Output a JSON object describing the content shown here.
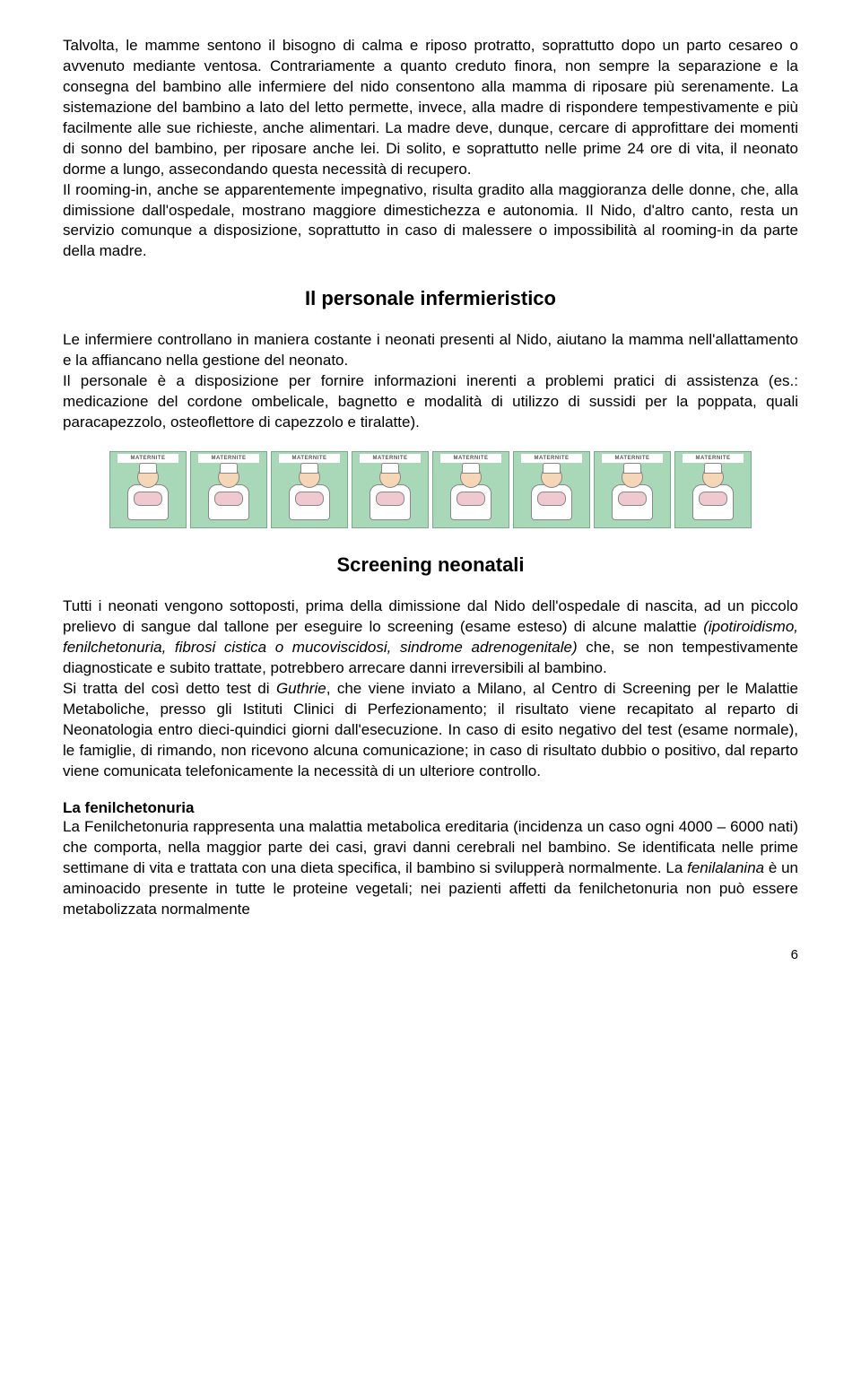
{
  "paragraph1": "Talvolta, le mamme sentono il bisogno di calma e riposo protratto, soprattutto dopo un parto cesareo o avvenuto mediante ventosa. Contrariamente a quanto creduto finora, non sempre la separazione e la consegna del bambino alle infermiere del nido consentono alla mamma di riposare più serenamente. La sistemazione del bambino a lato del letto permette, invece, alla madre di rispondere tempestivamente e più facilmente alle sue richieste, anche alimentari. La madre deve, dunque, cercare di approfittare dei momenti di sonno del bambino, per riposare anche lei. Di solito, e soprattutto nelle prime 24 ore di vita, il neonato dorme a lungo, assecondando questa necessità di recupero.",
  "paragraph2": "Il rooming-in, anche se apparentemente impegnativo, risulta gradito alla maggioranza delle donne, che, alla dimissione dall'ospedale, mostrano maggiore dimestichezza e autonomia. Il Nido, d'altro canto, resta un servizio comunque a disposizione, soprattutto in caso di malessere o impossibilità al rooming-in da parte della madre.",
  "heading1": "Il personale infermieristico",
  "paragraph3": "Le infermiere controllano in maniera costante i neonati presenti al Nido, aiutano la mamma nell'allattamento e la affiancano nella gestione del neonato.",
  "paragraph4": "Il personale è a disposizione per fornire informazioni inerenti a problemi pratici di assistenza (es.: medicazione del cordone ombelicale, bagnetto e modalità di utilizzo di sussidi per la poppata, quali paracapezzolo, osteoflettore di capezzolo e tiralatte).",
  "nurse_label": "MATERNITE",
  "nurse_count": 8,
  "heading2": "Screening neonatali",
  "paragraph5_a": "Tutti i neonati vengono sottoposti, prima della dimissione dal Nido dell'ospedale di nascita, ad un piccolo prelievo di sangue dal tallone per eseguire lo screening (esame esteso) di alcune malattie ",
  "paragraph5_b_italic": "(ipotiroidismo, fenilchetonuria, fibrosi cistica o mucoviscidosi, sindrome adrenogenitale)",
  "paragraph5_c": " che, se non tempestivamente diagnosticate e subito trattate, potrebbero arrecare danni irreversibili al bambino.",
  "paragraph6_a": "Si tratta del così detto test di ",
  "paragraph6_b_italic": "Guthrie",
  "paragraph6_c": ", che viene inviato a Milano, al Centro di Screening per le Malattie Metaboliche, presso gli Istituti Clinici di Perfezionamento; il risultato viene recapitato al reparto di Neonatologia entro dieci-quindici giorni dall'esecuzione. In caso di esito negativo del test (esame normale), le famiglie, di rimando, non ricevono alcuna comunicazione; in caso di risultato dubbio o positivo, dal reparto viene comunicata telefonicamente la necessità di un ulteriore controllo.",
  "subheading1": "La fenilchetonuria",
  "paragraph7_a": "La Fenilchetonuria rappresenta una malattia metabolica ereditaria (incidenza un caso ogni 4000 – 6000 nati) che comporta, nella maggior parte dei casi, gravi danni cerebrali nel bambino. Se identificata nelle prime settimane di vita e trattata con una dieta specifica, il bambino si svilupperà normalmente. La ",
  "paragraph7_b_italic": "fenilalanina",
  "paragraph7_c": " è un aminoacido presente in tutte le proteine vegetali; nei pazienti affetti da fenilchetonuria non può essere metabolizzata normalmente",
  "page_number": "6",
  "colors": {
    "text": "#000000",
    "background": "#ffffff",
    "nurse_bg": "#a8d8b8",
    "nurse_border": "#7aa888"
  }
}
